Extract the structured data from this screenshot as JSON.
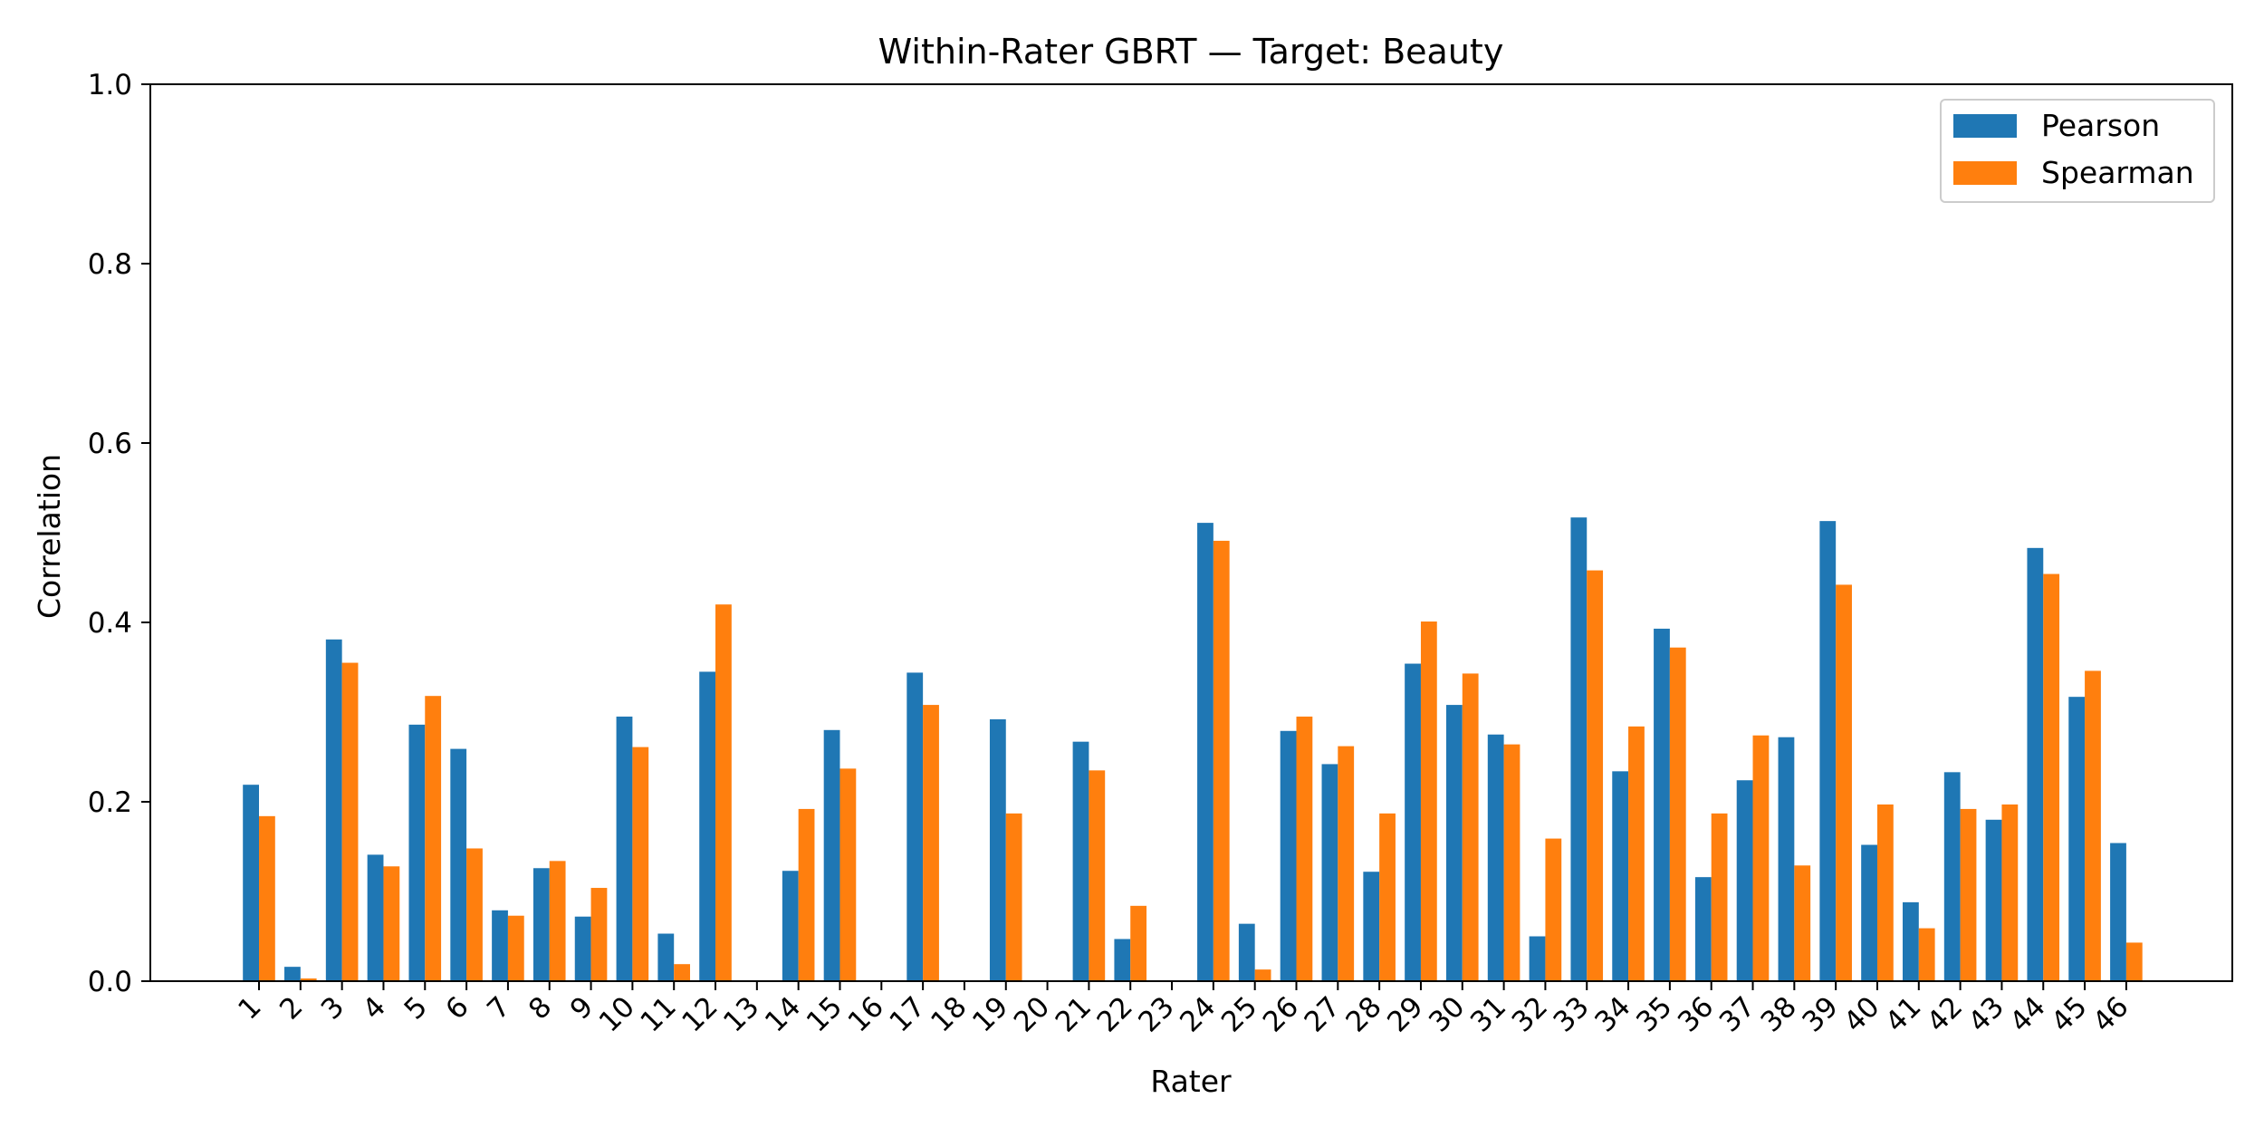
{
  "chart_data": {
    "type": "bar",
    "title": "Within-Rater GBRT — Target: Beauty",
    "xlabel": "Rater",
    "ylabel": "Correlation",
    "ylim": [
      0,
      1.0
    ],
    "yticks": [
      "0.0",
      "0.2",
      "0.4",
      "0.6",
      "0.8",
      "1.0"
    ],
    "grid": false,
    "legend_position": "top-right",
    "categories": [
      "1",
      "2",
      "3",
      "4",
      "5",
      "6",
      "7",
      "8",
      "9",
      "10",
      "11",
      "12",
      "13",
      "14",
      "15",
      "16",
      "17",
      "18",
      "19",
      "20",
      "21",
      "22",
      "23",
      "24",
      "25",
      "26",
      "27",
      "28",
      "29",
      "30",
      "31",
      "32",
      "33",
      "34",
      "35",
      "36",
      "37",
      "38",
      "39",
      "40",
      "41",
      "42",
      "43",
      "44",
      "45",
      "46"
    ],
    "series": [
      {
        "name": "Pearson",
        "color": "#1f77b4",
        "values": [
          0.219,
          0.016,
          0.381,
          0.141,
          0.286,
          0.259,
          0.079,
          0.126,
          0.072,
          0.295,
          0.053,
          0.345,
          0.0,
          0.123,
          0.28,
          0.0,
          0.344,
          0.0,
          0.292,
          0.0,
          0.267,
          0.047,
          0.0,
          0.511,
          0.064,
          0.279,
          0.242,
          0.122,
          0.354,
          0.308,
          0.275,
          0.05,
          0.517,
          0.234,
          0.393,
          0.116,
          0.224,
          0.272,
          0.513,
          0.152,
          0.088,
          0.233,
          0.18,
          0.483,
          0.317,
          0.154
        ]
      },
      {
        "name": "Spearman",
        "color": "#ff7f0e",
        "values": [
          0.184,
          0.003,
          0.355,
          0.128,
          0.318,
          0.148,
          0.073,
          0.134,
          0.104,
          0.261,
          0.019,
          0.42,
          0.0,
          0.192,
          0.237,
          0.0,
          0.308,
          0.0,
          0.187,
          0.0,
          0.235,
          0.084,
          0.0,
          0.491,
          0.013,
          0.295,
          0.262,
          0.187,
          0.401,
          0.343,
          0.264,
          0.159,
          0.458,
          0.284,
          0.372,
          0.187,
          0.274,
          0.129,
          0.442,
          0.197,
          0.059,
          0.192,
          0.197,
          0.454,
          0.346,
          0.043
        ]
      }
    ]
  }
}
